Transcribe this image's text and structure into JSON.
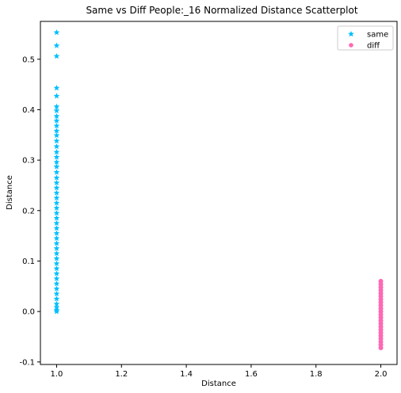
{
  "chart_data": {
    "type": "scatter",
    "title": "Same vs Diff People:_16 Normalized Distance Scatterplot",
    "xlabel": "Distance",
    "ylabel": "Distance",
    "xlim": [
      0.95,
      2.05
    ],
    "ylim": [
      -0.105,
      0.575
    ],
    "x_ticks": [
      1.0,
      1.2,
      1.4,
      1.6,
      1.8,
      2.0
    ],
    "x_tick_labels": [
      "1.0",
      "1.2",
      "1.4",
      "1.6",
      "1.8",
      "2.0"
    ],
    "y_ticks": [
      -0.1,
      0.0,
      0.1,
      0.2,
      0.3,
      0.4,
      0.5
    ],
    "y_tick_labels": [
      "-0.1",
      "0.0",
      "0.1",
      "0.2",
      "0.3",
      "0.4",
      "0.5"
    ],
    "grid": false,
    "legend_position": "top-right",
    "series": [
      {
        "name": "same",
        "marker": "star",
        "color": "#00bfff",
        "points": [
          [
            1.0,
            0.553
          ],
          [
            1.0,
            0.527
          ],
          [
            1.0,
            0.506
          ],
          [
            1.0,
            0.443
          ],
          [
            1.0,
            0.427
          ],
          [
            1.0,
            0.406
          ],
          [
            1.0,
            0.398
          ],
          [
            1.0,
            0.387
          ],
          [
            1.0,
            0.378
          ],
          [
            1.0,
            0.368
          ],
          [
            1.0,
            0.358
          ],
          [
            1.0,
            0.349
          ],
          [
            1.0,
            0.338
          ],
          [
            1.0,
            0.327
          ],
          [
            1.0,
            0.316
          ],
          [
            1.0,
            0.306
          ],
          [
            1.0,
            0.296
          ],
          [
            1.0,
            0.287
          ],
          [
            1.0,
            0.276
          ],
          [
            1.0,
            0.265
          ],
          [
            1.0,
            0.255
          ],
          [
            1.0,
            0.245
          ],
          [
            1.0,
            0.235
          ],
          [
            1.0,
            0.225
          ],
          [
            1.0,
            0.215
          ],
          [
            1.0,
            0.205
          ],
          [
            1.0,
            0.195
          ],
          [
            1.0,
            0.185
          ],
          [
            1.0,
            0.175
          ],
          [
            1.0,
            0.165
          ],
          [
            1.0,
            0.155
          ],
          [
            1.0,
            0.145
          ],
          [
            1.0,
            0.135
          ],
          [
            1.0,
            0.125
          ],
          [
            1.0,
            0.115
          ],
          [
            1.0,
            0.105
          ],
          [
            1.0,
            0.095
          ],
          [
            1.0,
            0.085
          ],
          [
            1.0,
            0.075
          ],
          [
            1.0,
            0.065
          ],
          [
            1.0,
            0.055
          ],
          [
            1.0,
            0.045
          ],
          [
            1.0,
            0.035
          ],
          [
            1.0,
            0.025
          ],
          [
            1.0,
            0.015
          ],
          [
            1.0,
            0.008
          ],
          [
            1.0,
            0.003
          ],
          [
            1.0,
            0.0
          ]
        ]
      },
      {
        "name": "diff",
        "marker": "circle",
        "color": "#ff69b4",
        "points": [
          [
            2.0,
            0.06
          ],
          [
            2.0,
            0.054
          ],
          [
            2.0,
            0.048
          ],
          [
            2.0,
            0.042
          ],
          [
            2.0,
            0.036
          ],
          [
            2.0,
            0.03
          ],
          [
            2.0,
            0.024
          ],
          [
            2.0,
            0.018
          ],
          [
            2.0,
            0.012
          ],
          [
            2.0,
            0.006
          ],
          [
            2.0,
            0.0
          ],
          [
            2.0,
            -0.006
          ],
          [
            2.0,
            -0.012
          ],
          [
            2.0,
            -0.018
          ],
          [
            2.0,
            -0.024
          ],
          [
            2.0,
            -0.03
          ],
          [
            2.0,
            -0.036
          ],
          [
            2.0,
            -0.042
          ],
          [
            2.0,
            -0.048
          ],
          [
            2.0,
            -0.054
          ],
          [
            2.0,
            -0.06
          ],
          [
            2.0,
            -0.066
          ],
          [
            2.0,
            -0.072
          ]
        ]
      }
    ]
  }
}
